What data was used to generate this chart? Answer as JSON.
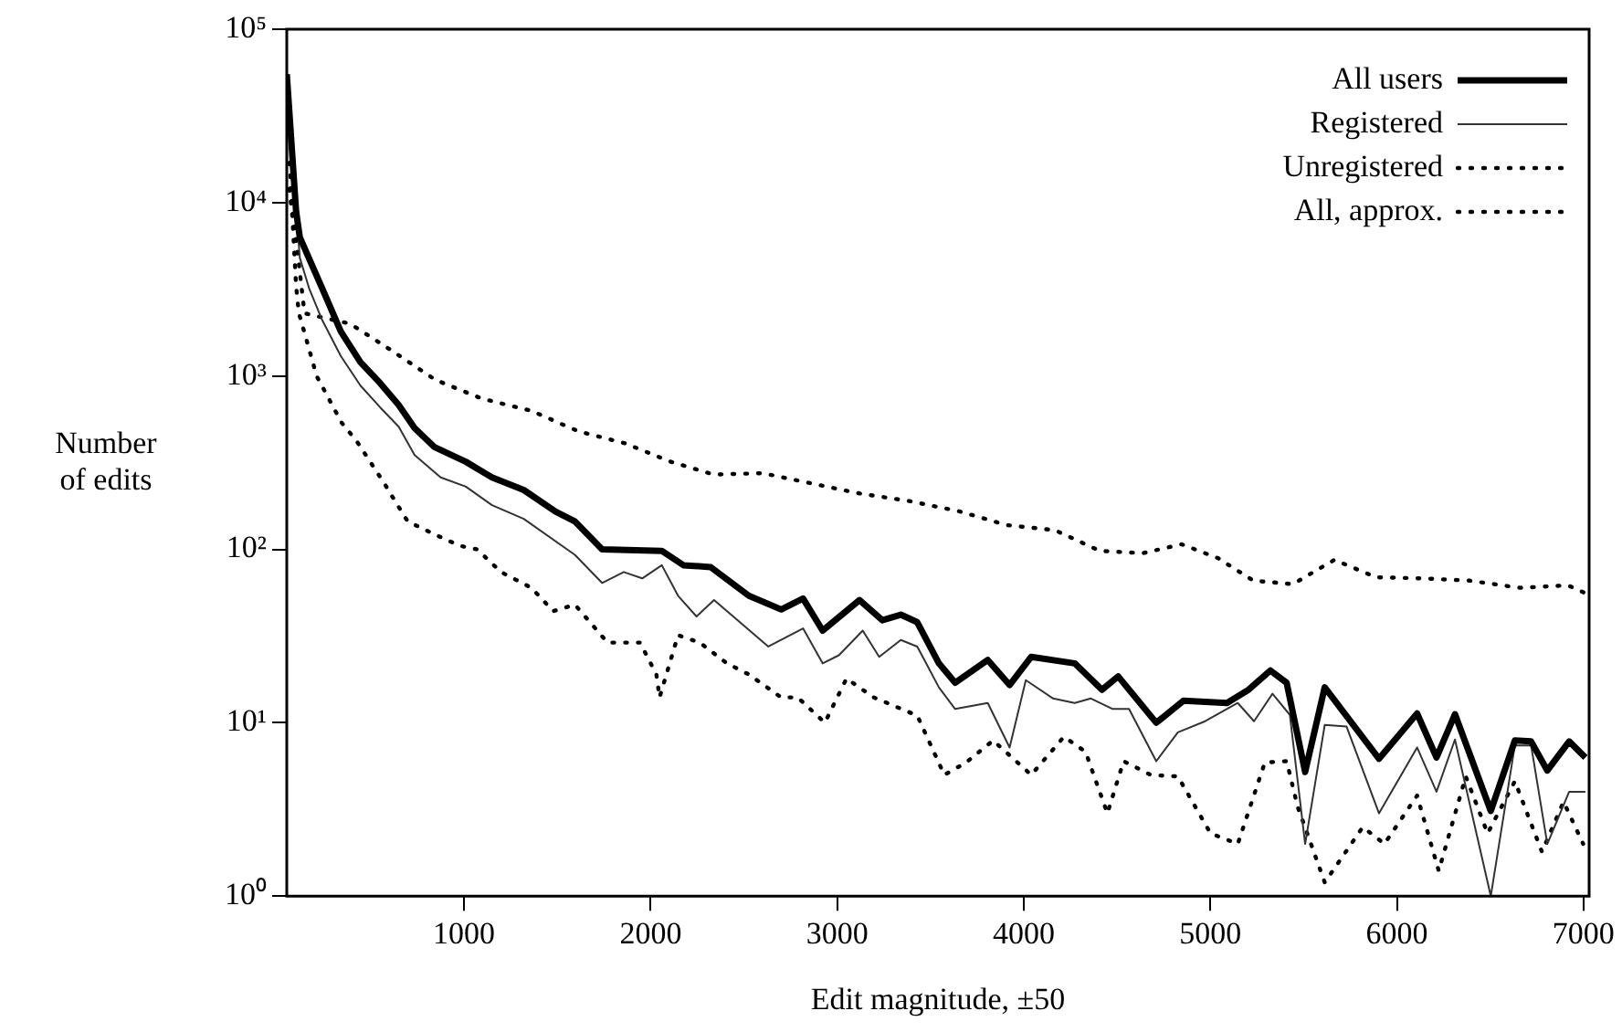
{
  "chart_data": {
    "type": "line",
    "xlabel": "Edit magnitude, ±50",
    "ylabel": "Number of edits",
    "log": "y",
    "grid": false,
    "legend": "top right",
    "marker": "none",
    "xlim": [
      50,
      7030
    ],
    "xticks": [
      1000,
      2000,
      3000,
      4000,
      5000,
      6000,
      7000
    ],
    "ylim": [
      1,
      100000
    ],
    "yticks": [
      {
        "value": 1,
        "label": "10⁰"
      },
      {
        "value": 10,
        "label": "10¹"
      },
      {
        "value": 100,
        "label": "10²"
      },
      {
        "value": 1000,
        "label": "10³"
      },
      {
        "value": 10000,
        "label": "10⁴"
      },
      {
        "value": 100000,
        "label": "10⁵"
      }
    ],
    "series": [
      {
        "name": "All users",
        "color": "#000000",
        "line_style": "solid",
        "x": [
          50,
          100,
          120,
          240,
          340,
          445,
          550,
          650,
          735,
          840,
          1010,
          1150,
          1320,
          1490,
          1594,
          1740,
          2060,
          2176,
          2322,
          2526,
          2700,
          2817,
          2922,
          3120,
          3242,
          3341,
          3429,
          3545,
          3632,
          3807,
          3924,
          4040,
          4273,
          4419,
          4506,
          4710,
          4856,
          5089,
          5205,
          5322,
          5409,
          5508,
          5613,
          5904,
          6108,
          6212,
          6311,
          6503,
          6632,
          6719,
          6806,
          6923,
          7010
        ],
        "values": [
          55000,
          8900,
          6300,
          3200,
          1800,
          1200,
          910,
          680,
          500,
          390,
          320,
          260,
          220,
          165,
          145,
          100,
          98,
          81,
          79,
          54,
          45,
          52,
          34,
          51,
          39,
          42,
          38,
          22,
          17,
          23,
          16.5,
          24,
          22,
          15.5,
          18.5,
          10,
          13.4,
          13,
          15.5,
          20,
          17,
          5.2,
          16,
          6.2,
          11.3,
          6.3,
          11.2,
          3.1,
          7.9,
          7.8,
          5.3,
          7.8,
          6.3
        ]
      },
      {
        "name": "Registered",
        "color": "#333333",
        "line_style": "solid",
        "x": [
          50,
          120,
          170,
          240,
          340,
          445,
          550,
          650,
          735,
          875,
          1010,
          1150,
          1320,
          1594,
          1740,
          1856,
          1955,
          2060,
          2147,
          2246,
          2340,
          2631,
          2817,
          2922,
          3009,
          3137,
          3225,
          3341,
          3429,
          3545,
          3632,
          3807,
          3924,
          4011,
          4157,
          4273,
          4360,
          4477,
          4564,
          4710,
          4826,
          4972,
          5147,
          5234,
          5333,
          5426,
          5508,
          5613,
          5730,
          5904,
          6108,
          6212,
          6311,
          6503,
          6632,
          6719,
          6806,
          6923,
          7010
        ],
        "values": [
          48000,
          4800,
          3200,
          2100,
          1300,
          880,
          660,
          510,
          350,
          260,
          230,
          180,
          150,
          93,
          64,
          74,
          68,
          81,
          54,
          41,
          51,
          27.5,
          35,
          22,
          24.5,
          34,
          24,
          30,
          27.5,
          16,
          12,
          13,
          7.2,
          17.6,
          13.8,
          13,
          13.8,
          12,
          12,
          6,
          8.8,
          10.2,
          13,
          10.2,
          14.7,
          11.1,
          2,
          9.7,
          9.5,
          3,
          7.2,
          4,
          8,
          1,
          7.4,
          7.4,
          2,
          4,
          4
        ]
      },
      {
        "name": "Unregistered",
        "color": "#000000",
        "line_style": "dotted",
        "x": [
          64,
          80,
          100,
          115,
          150,
          210,
          275,
          343,
          425,
          497,
          573,
          630,
          698,
          835,
          976,
          1070,
          1198,
          1361,
          1478,
          1594,
          1769,
          1943,
          2031,
          2048,
          2147,
          2263,
          2409,
          2526,
          2700,
          2788,
          2934,
          3050,
          3196,
          3429,
          3574,
          3691,
          3836,
          4040,
          4215,
          4331,
          4448,
          4535,
          4681,
          4826,
          5001,
          5147,
          5292,
          5409,
          5467,
          5613,
          5817,
          5933,
          6108,
          6224,
          6369,
          6486,
          6632,
          6777,
          6893,
          6998
        ],
        "values": [
          12000,
          8300,
          3300,
          2300,
          1700,
          1000,
          740,
          540,
          420,
          320,
          240,
          190,
          145,
          123,
          105,
          100,
          74,
          60,
          44,
          48,
          29,
          29,
          19,
          14,
          32,
          29,
          22,
          19,
          14,
          14,
          10,
          18,
          14,
          11,
          5,
          5.9,
          7.9,
          5,
          8.3,
          6.8,
          3,
          6,
          5,
          4.9,
          2.3,
          2,
          5.9,
          6,
          3.3,
          1.2,
          2.5,
          2,
          3.8,
          1.4,
          4.9,
          2.3,
          4.6,
          1.8,
          3.5,
          2
        ]
      },
      {
        "name": "All, approx.",
        "color": "#000000",
        "line_style": "dotted",
        "x": [
          65,
          80,
          145,
          390,
          613,
          846,
          1096,
          1360,
          1612,
          1859,
          2109,
          2339,
          2600,
          2863,
          3121,
          3385,
          3652,
          3909,
          4167,
          4407,
          4637,
          4846,
          5041,
          5230,
          5442,
          5665,
          5888,
          6139,
          6389,
          6659,
          6917,
          7023
        ],
        "values": [
          17000,
          9500,
          2300,
          2000,
          1400,
          950,
          740,
          630,
          480,
          410,
          320,
          270,
          275,
          240,
          210,
          190,
          166,
          138,
          129,
          98,
          95,
          107,
          89,
          66,
          63,
          87,
          69,
          68,
          66,
          60,
          62,
          55
        ]
      }
    ]
  }
}
